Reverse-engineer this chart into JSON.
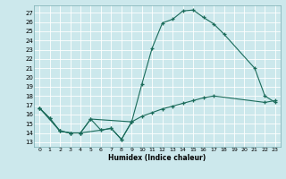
{
  "xlabel": "Humidex (Indice chaleur)",
  "bg_color": "#cce8ec",
  "grid_color": "#ffffff",
  "line_color": "#1a6b5a",
  "xlim": [
    -0.5,
    23.5
  ],
  "ylim": [
    12.5,
    27.8
  ],
  "yticks": [
    13,
    14,
    15,
    16,
    17,
    18,
    19,
    20,
    21,
    22,
    23,
    24,
    25,
    26,
    27
  ],
  "xticks": [
    0,
    1,
    2,
    3,
    4,
    5,
    6,
    7,
    8,
    9,
    10,
    11,
    12,
    13,
    14,
    15,
    16,
    17,
    18,
    19,
    20,
    21,
    22,
    23
  ],
  "curve_top_x": [
    0,
    1,
    2,
    3,
    4,
    5,
    9,
    10,
    11,
    12,
    13,
    14,
    15,
    16,
    17,
    18,
    21,
    22,
    23
  ],
  "curve_top_y": [
    16.7,
    15.6,
    14.2,
    14.0,
    14.0,
    15.5,
    15.2,
    19.3,
    23.2,
    25.9,
    26.3,
    27.2,
    27.3,
    26.5,
    25.8,
    24.7,
    21.0,
    18.0,
    17.3
  ],
  "curve_low_x": [
    0,
    1,
    2,
    3,
    4,
    5,
    6,
    7,
    8,
    9
  ],
  "curve_low_y": [
    16.7,
    15.6,
    14.2,
    14.0,
    14.0,
    15.5,
    14.3,
    14.5,
    13.3,
    15.2
  ],
  "curve_mid_x": [
    0,
    2,
    3,
    4,
    6,
    7,
    8,
    9,
    10,
    11,
    12,
    13,
    14,
    15,
    16,
    17,
    22,
    23
  ],
  "curve_mid_y": [
    16.7,
    14.2,
    14.0,
    14.0,
    14.3,
    14.5,
    13.3,
    15.2,
    15.8,
    16.2,
    16.6,
    16.9,
    17.2,
    17.5,
    17.8,
    18.0,
    17.3,
    17.5
  ]
}
